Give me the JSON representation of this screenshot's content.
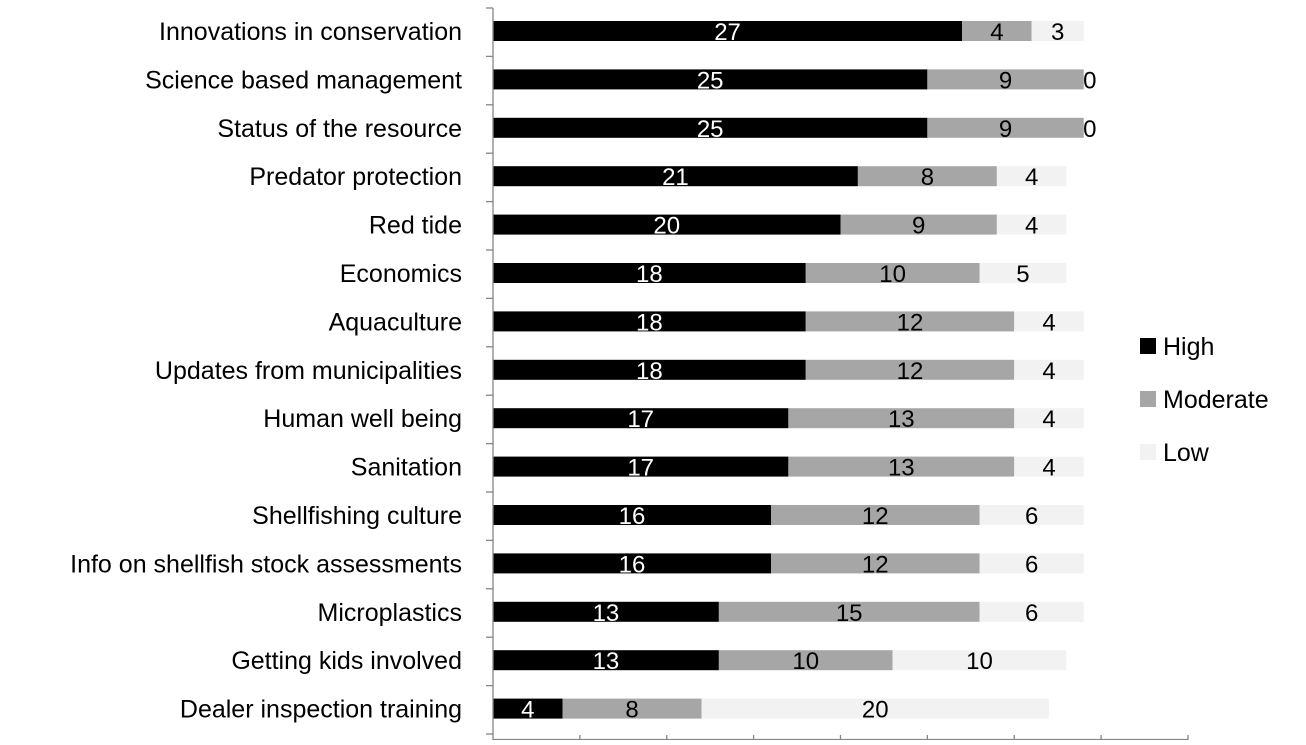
{
  "chart_data": {
    "type": "bar",
    "orientation": "horizontal",
    "stacked": true,
    "title": "",
    "xlabel": "",
    "ylabel": "",
    "xlim": [
      0,
      40
    ],
    "grid": false,
    "legend_position": "right",
    "categories": [
      "Innovations in conservation",
      "Science based management",
      "Status of the resource",
      "Predator protection",
      "Red tide",
      "Economics",
      "Aquaculture",
      "Updates from municipalities",
      "Human well being",
      "Sanitation",
      "Shellfishing culture",
      "Info on shellfish stock assessments",
      "Microplastics",
      "Getting kids involved",
      "Dealer inspection training"
    ],
    "series": [
      {
        "name": "High",
        "color": "#000000",
        "label_color": "#ffffff",
        "values": [
          27,
          25,
          25,
          21,
          20,
          18,
          18,
          18,
          17,
          17,
          16,
          16,
          13,
          13,
          4
        ]
      },
      {
        "name": "Moderate",
        "color": "#a6a6a6",
        "label_color": "#000000",
        "values": [
          4,
          9,
          9,
          8,
          9,
          10,
          12,
          12,
          13,
          13,
          12,
          12,
          15,
          10,
          8
        ]
      },
      {
        "name": "Low",
        "color": "#f2f2f2",
        "label_color": "#000000",
        "values": [
          3,
          0,
          0,
          4,
          4,
          5,
          4,
          4,
          4,
          4,
          6,
          6,
          6,
          10,
          20
        ]
      }
    ]
  }
}
